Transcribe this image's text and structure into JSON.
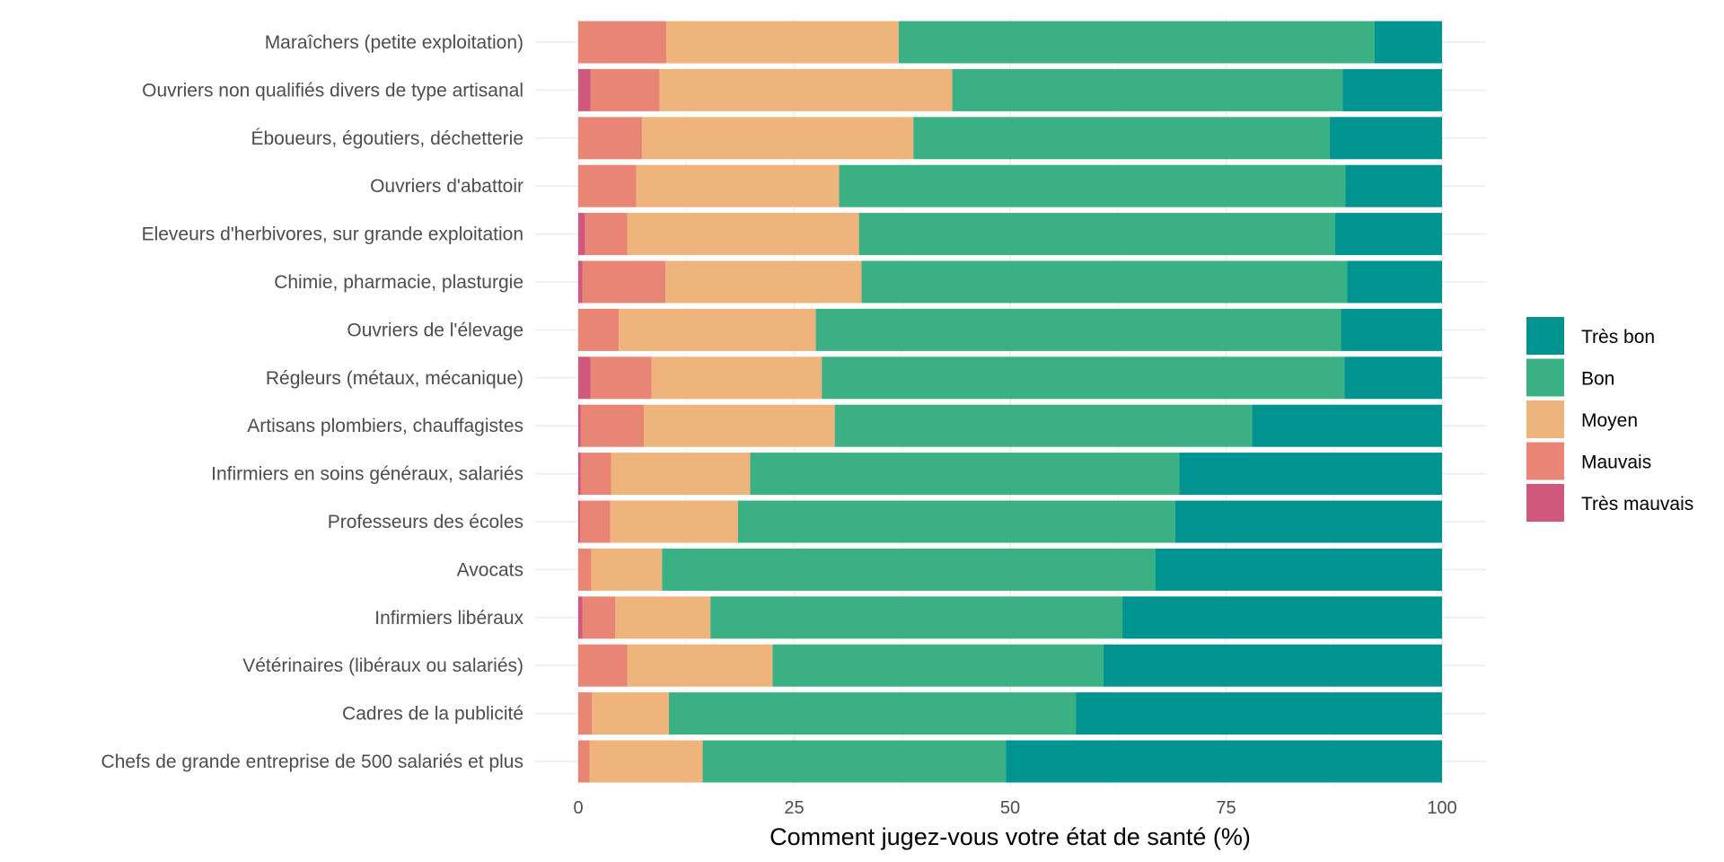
{
  "chart_data": {
    "type": "bar",
    "orientation": "horizontal",
    "stacked": true,
    "xlabel": "Comment jugez-vous votre état de santé (%)",
    "ylabel": "",
    "xlim": [
      0,
      100
    ],
    "x_ticks": [
      0,
      25,
      50,
      75,
      100
    ],
    "grid": true,
    "legend_position": "right",
    "categories": [
      "Maraîchers (petite exploitation)",
      "Ouvriers non qualifiés divers de type artisanal",
      "Éboueurs, égoutiers, déchetterie",
      "Ouvriers d'abattoir",
      "Eleveurs d'herbivores, sur grande exploitation",
      "Chimie, pharmacie, plasturgie",
      "Ouvriers de l'élevage",
      "Régleurs (métaux, mécanique)",
      "Artisans plombiers, chauffagistes",
      "Infirmiers en soins généraux, salariés",
      "Professeurs des écoles",
      "Avocats",
      "Infirmiers libéraux",
      "Vétérinaires (libéraux ou salariés)",
      "Cadres de la publicité",
      "Chefs de grande entreprise de 500 salariés et plus"
    ],
    "series": [
      {
        "name": "Très mauvais",
        "color": "#d1587d",
        "values": [
          0,
          1.4,
          0,
          0,
          0.8,
          0.5,
          0,
          1.4,
          0.3,
          0.3,
          0.2,
          0,
          0.5,
          0,
          0,
          0
        ]
      },
      {
        "name": "Mauvais",
        "color": "#e98574",
        "values": [
          10.2,
          8.0,
          7.4,
          6.7,
          4.9,
          9.6,
          4.7,
          7.1,
          7.3,
          3.5,
          3.5,
          1.5,
          3.8,
          5.7,
          1.6,
          1.3
        ]
      },
      {
        "name": "Moyen",
        "color": "#efb47b",
        "values": [
          26.9,
          33.9,
          31.4,
          23.5,
          26.8,
          22.7,
          22.8,
          19.7,
          22.1,
          16.1,
          14.8,
          8.2,
          11.0,
          16.8,
          8.9,
          13.1
        ]
      },
      {
        "name": "Bon",
        "color": "#3bb085",
        "values": [
          55.1,
          45.2,
          48.2,
          58.6,
          55.1,
          56.2,
          60.8,
          60.5,
          48.3,
          49.7,
          50.6,
          57.1,
          47.7,
          38.3,
          47.1,
          35.1
        ]
      },
      {
        "name": "Très bon",
        "color": "#009490",
        "values": [
          7.8,
          11.5,
          13.0,
          11.2,
          12.4,
          11.0,
          11.7,
          11.3,
          22.0,
          30.4,
          30.9,
          33.2,
          37.0,
          39.2,
          42.4,
          50.5
        ]
      }
    ],
    "legend_order": [
      "Très bon",
      "Bon",
      "Moyen",
      "Mauvais",
      "Très mauvais"
    ]
  }
}
